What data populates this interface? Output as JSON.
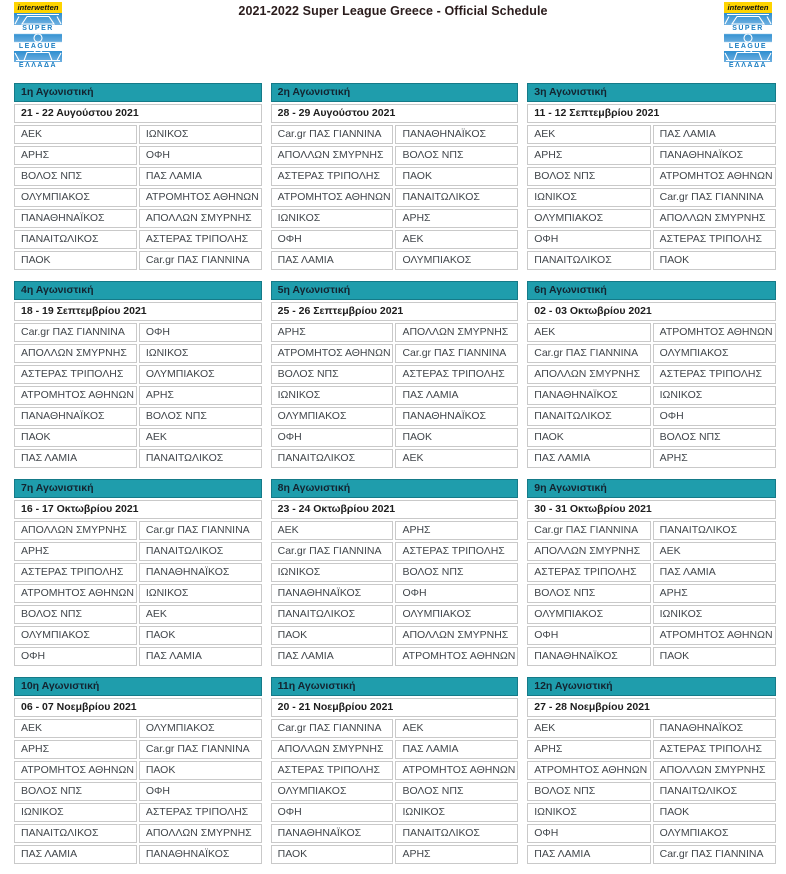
{
  "page": {
    "title": "2021-2022 Super League Greece - Official Schedule"
  },
  "logo": {
    "sponsor": "interwetten",
    "word1": "SUPER",
    "word2": "LEAGUE",
    "word3": "ΕΛΛΑΔΑ"
  },
  "colors": {
    "header_teal": "#1f9dac",
    "header_teal_dark": "#157a88",
    "header_text": "#132430",
    "cell_border": "#c9c9c9",
    "cell_text": "#40454a",
    "title_text": "#2a1c1c",
    "logo_blue": "#1b7ec2",
    "logo_yellow": "#ffd400"
  },
  "matchdays": [
    {
      "label": "1η Αγωνιστική",
      "date": "21 - 22 Αυγούστου 2021",
      "matches": [
        [
          "ΑΕΚ",
          "ΙΩΝΙΚΟΣ"
        ],
        [
          "ΑΡΗΣ",
          "ΟΦΗ"
        ],
        [
          "ΒΟΛΟΣ ΝΠΣ",
          "ΠΑΣ ΛΑΜΙΑ"
        ],
        [
          "ΟΛΥΜΠΙΑΚΟΣ",
          "ΑΤΡΟΜΗΤΟΣ ΑΘΗΝΩΝ"
        ],
        [
          "ΠΑΝΑΘΗΝΑΪΚΟΣ",
          "ΑΠΟΛΛΩΝ ΣΜΥΡΝΗΣ"
        ],
        [
          "ΠΑΝΑΙΤΩΛΙΚΟΣ",
          "ΑΣΤΕΡΑΣ ΤΡΙΠΟΛΗΣ"
        ],
        [
          "ΠΑΟΚ",
          "Car.gr ΠΑΣ ΓΙΑΝΝΙΝΑ"
        ]
      ]
    },
    {
      "label": "2η Αγωνιστική",
      "date": "28 - 29 Αυγούστου 2021",
      "matches": [
        [
          "Car.gr ΠΑΣ ΓΙΑΝΝΙΝΑ",
          "ΠΑΝΑΘΗΝΑΪΚΟΣ"
        ],
        [
          "ΑΠΟΛΛΩΝ ΣΜΥΡΝΗΣ",
          "ΒΟΛΟΣ ΝΠΣ"
        ],
        [
          "ΑΣΤΕΡΑΣ ΤΡΙΠΟΛΗΣ",
          "ΠΑΟΚ"
        ],
        [
          "ΑΤΡΟΜΗΤΟΣ ΑΘΗΝΩΝ",
          "ΠΑΝΑΙΤΩΛΙΚΟΣ"
        ],
        [
          "ΙΩΝΙΚΟΣ",
          "ΑΡΗΣ"
        ],
        [
          "ΟΦΗ",
          "ΑΕΚ"
        ],
        [
          "ΠΑΣ ΛΑΜΙΑ",
          "ΟΛΥΜΠΙΑΚΟΣ"
        ]
      ]
    },
    {
      "label": "3η Αγωνιστική",
      "date": "11 - 12 Σεπτεμβρίου 2021",
      "matches": [
        [
          "ΑΕΚ",
          "ΠΑΣ ΛΑΜΙΑ"
        ],
        [
          "ΑΡΗΣ",
          "ΠΑΝΑΘΗΝΑΪΚΟΣ"
        ],
        [
          "ΒΟΛΟΣ ΝΠΣ",
          "ΑΤΡΟΜΗΤΟΣ ΑΘΗΝΩΝ"
        ],
        [
          "ΙΩΝΙΚΟΣ",
          "Car.gr ΠΑΣ ΓΙΑΝΝΙΝΑ"
        ],
        [
          "ΟΛΥΜΠΙΑΚΟΣ",
          "ΑΠΟΛΛΩΝ ΣΜΥΡΝΗΣ"
        ],
        [
          "ΟΦΗ",
          "ΑΣΤΕΡΑΣ ΤΡΙΠΟΛΗΣ"
        ],
        [
          "ΠΑΝΑΙΤΩΛΙΚΟΣ",
          "ΠΑΟΚ"
        ]
      ]
    },
    {
      "label": "4η Αγωνιστική",
      "date": "18 - 19 Σεπτεμβρίου 2021",
      "matches": [
        [
          "Car.gr ΠΑΣ ΓΙΑΝΝΙΝΑ",
          "ΟΦΗ"
        ],
        [
          "ΑΠΟΛΛΩΝ ΣΜΥΡΝΗΣ",
          "ΙΩΝΙΚΟΣ"
        ],
        [
          "ΑΣΤΕΡΑΣ ΤΡΙΠΟΛΗΣ",
          "ΟΛΥΜΠΙΑΚΟΣ"
        ],
        [
          "ΑΤΡΟΜΗΤΟΣ ΑΘΗΝΩΝ",
          "ΑΡΗΣ"
        ],
        [
          "ΠΑΝΑΘΗΝΑΪΚΟΣ",
          "ΒΟΛΟΣ ΝΠΣ"
        ],
        [
          "ΠΑΟΚ",
          "ΑΕΚ"
        ],
        [
          "ΠΑΣ ΛΑΜΙΑ",
          "ΠΑΝΑΙΤΩΛΙΚΟΣ"
        ]
      ]
    },
    {
      "label": "5η Αγωνιστική",
      "date": "25 - 26 Σεπτεμβρίου 2021",
      "matches": [
        [
          "ΑΡΗΣ",
          "ΑΠΟΛΛΩΝ ΣΜΥΡΝΗΣ"
        ],
        [
          "ΑΤΡΟΜΗΤΟΣ ΑΘΗΝΩΝ",
          "Car.gr ΠΑΣ ΓΙΑΝΝΙΝΑ"
        ],
        [
          "ΒΟΛΟΣ ΝΠΣ",
          "ΑΣΤΕΡΑΣ ΤΡΙΠΟΛΗΣ"
        ],
        [
          "ΙΩΝΙΚΟΣ",
          "ΠΑΣ ΛΑΜΙΑ"
        ],
        [
          "ΟΛΥΜΠΙΑΚΟΣ",
          "ΠΑΝΑΘΗΝΑΪΚΟΣ"
        ],
        [
          "ΟΦΗ",
          "ΠΑΟΚ"
        ],
        [
          "ΠΑΝΑΙΤΩΛΙΚΟΣ",
          "ΑΕΚ"
        ]
      ]
    },
    {
      "label": "6η Αγωνιστική",
      "date": "02 - 03 Οκτωβρίου 2021",
      "matches": [
        [
          "ΑΕΚ",
          "ΑΤΡΟΜΗΤΟΣ ΑΘΗΝΩΝ"
        ],
        [
          "Car.gr ΠΑΣ ΓΙΑΝΝΙΝΑ",
          "ΟΛΥΜΠΙΑΚΟΣ"
        ],
        [
          "ΑΠΟΛΛΩΝ ΣΜΥΡΝΗΣ",
          "ΑΣΤΕΡΑΣ ΤΡΙΠΟΛΗΣ"
        ],
        [
          "ΠΑΝΑΘΗΝΑΪΚΟΣ",
          "ΙΩΝΙΚΟΣ"
        ],
        [
          "ΠΑΝΑΙΤΩΛΙΚΟΣ",
          "ΟΦΗ"
        ],
        [
          "ΠΑΟΚ",
          "ΒΟΛΟΣ ΝΠΣ"
        ],
        [
          "ΠΑΣ ΛΑΜΙΑ",
          "ΑΡΗΣ"
        ]
      ]
    },
    {
      "label": "7η Αγωνιστική",
      "date": "16 - 17 Οκτωβρίου 2021",
      "matches": [
        [
          "ΑΠΟΛΛΩΝ ΣΜΥΡΝΗΣ",
          "Car.gr ΠΑΣ ΓΙΑΝΝΙΝΑ"
        ],
        [
          "ΑΡΗΣ",
          "ΠΑΝΑΙΤΩΛΙΚΟΣ"
        ],
        [
          "ΑΣΤΕΡΑΣ ΤΡΙΠΟΛΗΣ",
          "ΠΑΝΑΘΗΝΑΪΚΟΣ"
        ],
        [
          "ΑΤΡΟΜΗΤΟΣ ΑΘΗΝΩΝ",
          "ΙΩΝΙΚΟΣ"
        ],
        [
          "ΒΟΛΟΣ ΝΠΣ",
          "ΑΕΚ"
        ],
        [
          "ΟΛΥΜΠΙΑΚΟΣ",
          "ΠΑΟΚ"
        ],
        [
          "ΟΦΗ",
          "ΠΑΣ ΛΑΜΙΑ"
        ]
      ]
    },
    {
      "label": "8η Αγωνιστική",
      "date": "23 - 24 Οκτωβρίου 2021",
      "matches": [
        [
          "ΑΕΚ",
          "ΑΡΗΣ"
        ],
        [
          "Car.gr ΠΑΣ ΓΙΑΝΝΙΝΑ",
          "ΑΣΤΕΡΑΣ ΤΡΙΠΟΛΗΣ"
        ],
        [
          "ΙΩΝΙΚΟΣ",
          "ΒΟΛΟΣ ΝΠΣ"
        ],
        [
          "ΠΑΝΑΘΗΝΑΪΚΟΣ",
          "ΟΦΗ"
        ],
        [
          "ΠΑΝΑΙΤΩΛΙΚΟΣ",
          "ΟΛΥΜΠΙΑΚΟΣ"
        ],
        [
          "ΠΑΟΚ",
          "ΑΠΟΛΛΩΝ ΣΜΥΡΝΗΣ"
        ],
        [
          "ΠΑΣ ΛΑΜΙΑ",
          "ΑΤΡΟΜΗΤΟΣ ΑΘΗΝΩΝ"
        ]
      ]
    },
    {
      "label": "9η Αγωνιστική",
      "date": "30 - 31 Οκτωβρίου 2021",
      "matches": [
        [
          "Car.gr ΠΑΣ ΓΙΑΝΝΙΝΑ",
          "ΠΑΝΑΙΤΩΛΙΚΟΣ"
        ],
        [
          "ΑΠΟΛΛΩΝ ΣΜΥΡΝΗΣ",
          "ΑΕΚ"
        ],
        [
          "ΑΣΤΕΡΑΣ ΤΡΙΠΟΛΗΣ",
          "ΠΑΣ ΛΑΜΙΑ"
        ],
        [
          "ΒΟΛΟΣ ΝΠΣ",
          "ΑΡΗΣ"
        ],
        [
          "ΟΛΥΜΠΙΑΚΟΣ",
          "ΙΩΝΙΚΟΣ"
        ],
        [
          "ΟΦΗ",
          "ΑΤΡΟΜΗΤΟΣ ΑΘΗΝΩΝ"
        ],
        [
          "ΠΑΝΑΘΗΝΑΪΚΟΣ",
          "ΠΑΟΚ"
        ]
      ]
    },
    {
      "label": "10η Αγωνιστική",
      "date": "06 - 07 Νοεμβρίου 2021",
      "matches": [
        [
          "ΑΕΚ",
          "ΟΛΥΜΠΙΑΚΟΣ"
        ],
        [
          "ΑΡΗΣ",
          "Car.gr ΠΑΣ ΓΙΑΝΝΙΝΑ"
        ],
        [
          "ΑΤΡΟΜΗΤΟΣ ΑΘΗΝΩΝ",
          "ΠΑΟΚ"
        ],
        [
          "ΒΟΛΟΣ ΝΠΣ",
          "ΟΦΗ"
        ],
        [
          "ΙΩΝΙΚΟΣ",
          "ΑΣΤΕΡΑΣ ΤΡΙΠΟΛΗΣ"
        ],
        [
          "ΠΑΝΑΙΤΩΛΙΚΟΣ",
          "ΑΠΟΛΛΩΝ ΣΜΥΡΝΗΣ"
        ],
        [
          "ΠΑΣ ΛΑΜΙΑ",
          "ΠΑΝΑΘΗΝΑΪΚΟΣ"
        ]
      ]
    },
    {
      "label": "11η Αγωνιστική",
      "date": "20 - 21 Νοεμβρίου 2021",
      "matches": [
        [
          "Car.gr ΠΑΣ ΓΙΑΝΝΙΝΑ",
          "ΑΕΚ"
        ],
        [
          "ΑΠΟΛΛΩΝ ΣΜΥΡΝΗΣ",
          "ΠΑΣ ΛΑΜΙΑ"
        ],
        [
          "ΑΣΤΕΡΑΣ ΤΡΙΠΟΛΗΣ",
          "ΑΤΡΟΜΗΤΟΣ ΑΘΗΝΩΝ"
        ],
        [
          "ΟΛΥΜΠΙΑΚΟΣ",
          "ΒΟΛΟΣ ΝΠΣ"
        ],
        [
          "ΟΦΗ",
          "ΙΩΝΙΚΟΣ"
        ],
        [
          "ΠΑΝΑΘΗΝΑΪΚΟΣ",
          "ΠΑΝΑΙΤΩΛΙΚΟΣ"
        ],
        [
          "ΠΑΟΚ",
          "ΑΡΗΣ"
        ]
      ]
    },
    {
      "label": "12η Αγωνιστική",
      "date": "27 - 28 Νοεμβρίου 2021",
      "matches": [
        [
          "ΑΕΚ",
          "ΠΑΝΑΘΗΝΑΪΚΟΣ"
        ],
        [
          "ΑΡΗΣ",
          "ΑΣΤΕΡΑΣ ΤΡΙΠΟΛΗΣ"
        ],
        [
          "ΑΤΡΟΜΗΤΟΣ ΑΘΗΝΩΝ",
          "ΑΠΟΛΛΩΝ ΣΜΥΡΝΗΣ"
        ],
        [
          "ΒΟΛΟΣ ΝΠΣ",
          "ΠΑΝΑΙΤΩΛΙΚΟΣ"
        ],
        [
          "ΙΩΝΙΚΟΣ",
          "ΠΑΟΚ"
        ],
        [
          "ΟΦΗ",
          "ΟΛΥΜΠΙΑΚΟΣ"
        ],
        [
          "ΠΑΣ ΛΑΜΙΑ",
          "Car.gr ΠΑΣ ΓΙΑΝΝΙΝΑ"
        ]
      ]
    }
  ]
}
